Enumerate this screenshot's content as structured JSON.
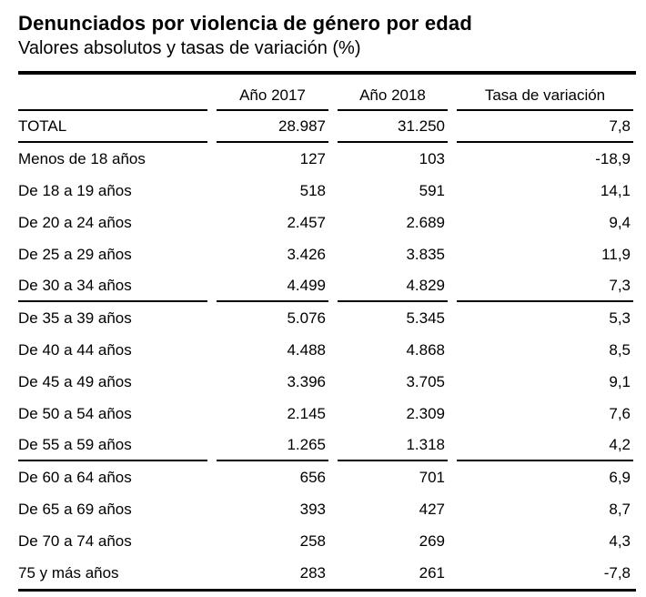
{
  "title": "Denunciados por violencia de género por edad",
  "subtitle": "Valores absolutos y tasas de variación (%)",
  "colors": {
    "text": "#000000",
    "background": "#ffffff",
    "rule": "#000000"
  },
  "table": {
    "columns": [
      "",
      "Año 2017",
      "Año 2018",
      "Tasa de variación"
    ],
    "rows": [
      {
        "label": "TOTAL",
        "y2017": "28.987",
        "y2018": "31.250",
        "rate": "7,8",
        "group_end": true
      },
      {
        "label": "Menos de 18 años",
        "y2017": "127",
        "y2018": "103",
        "rate": "-18,9",
        "group_end": false
      },
      {
        "label": "De 18 a 19 años",
        "y2017": "518",
        "y2018": "591",
        "rate": "14,1",
        "group_end": false
      },
      {
        "label": "De 20 a 24 años",
        "y2017": "2.457",
        "y2018": "2.689",
        "rate": "9,4",
        "group_end": false
      },
      {
        "label": "De 25 a 29 años",
        "y2017": "3.426",
        "y2018": "3.835",
        "rate": "11,9",
        "group_end": false
      },
      {
        "label": "De 30 a 34 años",
        "y2017": "4.499",
        "y2018": "4.829",
        "rate": "7,3",
        "group_end": true
      },
      {
        "label": "De 35 a 39 años",
        "y2017": "5.076",
        "y2018": "5.345",
        "rate": "5,3",
        "group_end": false
      },
      {
        "label": "De 40 a 44 años",
        "y2017": "4.488",
        "y2018": "4.868",
        "rate": "8,5",
        "group_end": false
      },
      {
        "label": "De 45 a 49 años",
        "y2017": "3.396",
        "y2018": "3.705",
        "rate": "9,1",
        "group_end": false
      },
      {
        "label": "De 50 a 54 años",
        "y2017": "2.145",
        "y2018": "2.309",
        "rate": "7,6",
        "group_end": false
      },
      {
        "label": "De 55 a 59 años",
        "y2017": "1.265",
        "y2018": "1.318",
        "rate": "4,2",
        "group_end": true
      },
      {
        "label": "De 60 a 64 años",
        "y2017": "656",
        "y2018": "701",
        "rate": "6,9",
        "group_end": false
      },
      {
        "label": "De 65 a 69 años",
        "y2017": "393",
        "y2018": "427",
        "rate": "8,7",
        "group_end": false
      },
      {
        "label": "De 70 a 74 años",
        "y2017": "258",
        "y2018": "269",
        "rate": "4,3",
        "group_end": false
      },
      {
        "label": "75 y más años",
        "y2017": "283",
        "y2018": "261",
        "rate": "-7,8",
        "group_end": false
      }
    ]
  },
  "chart_data": {
    "type": "table",
    "title": "Denunciados por violencia de género por edad",
    "subtitle": "Valores absolutos y tasas de variación (%)",
    "columns": [
      "Año 2017",
      "Año 2018",
      "Tasa de variación (%)"
    ],
    "categories": [
      "TOTAL",
      "Menos de 18 años",
      "De 18 a 19 años",
      "De 20 a 24 años",
      "De 25 a 29 años",
      "De 30 a 34 años",
      "De 35 a 39 años",
      "De 40 a 44 años",
      "De 45 a 49 años",
      "De 50 a 54 años",
      "De 55 a 59 años",
      "De 60 a 64 años",
      "De 65 a 69 años",
      "De 70 a 74 años",
      "75 y más años"
    ],
    "series": [
      {
        "name": "Año 2017",
        "values": [
          28987,
          127,
          518,
          2457,
          3426,
          4499,
          5076,
          4488,
          3396,
          2145,
          1265,
          656,
          393,
          258,
          283
        ]
      },
      {
        "name": "Año 2018",
        "values": [
          31250,
          103,
          591,
          2689,
          3835,
          4829,
          5345,
          4868,
          3705,
          2309,
          1318,
          701,
          427,
          269,
          261
        ]
      },
      {
        "name": "Tasa de variación (%)",
        "values": [
          7.8,
          -18.9,
          14.1,
          9.4,
          11.9,
          7.3,
          5.3,
          8.5,
          9.1,
          7.6,
          4.2,
          6.9,
          8.7,
          4.3,
          -7.8
        ]
      }
    ]
  }
}
